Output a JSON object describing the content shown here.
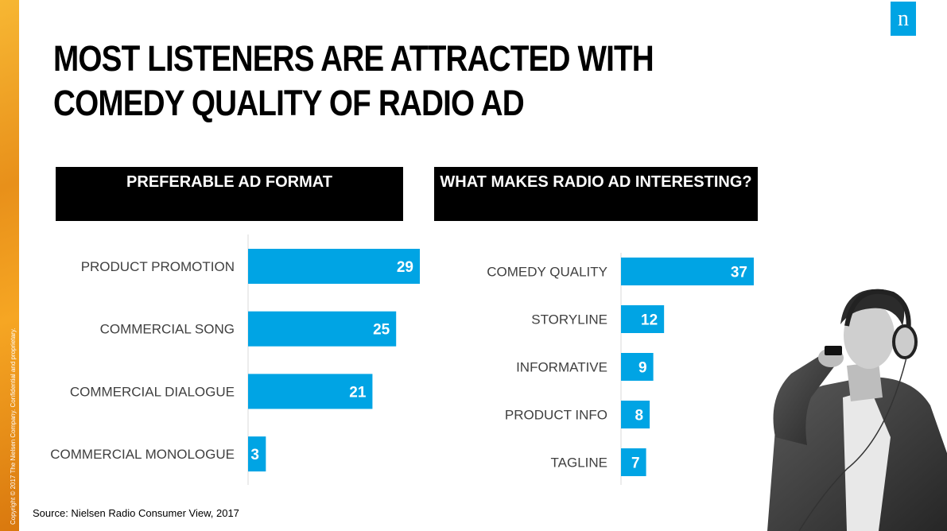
{
  "page": {
    "title": "MOST LISTENERS ARE ATTRACTED WITH COMEDY QUALITY OF RADIO AD",
    "copyright": "Copyright © 2017 The Nielsen Company. Confidential and proprietary.",
    "source": "Source: Nielsen Radio Consumer View, 2017",
    "logo_letter": "n"
  },
  "colors": {
    "bar": "#00a4e4",
    "header_bg": "#000000",
    "accent": "#f6a623"
  },
  "chart_data": [
    {
      "type": "bar",
      "orientation": "horizontal",
      "title": "PREFERABLE AD FORMAT",
      "categories": [
        "PRODUCT PROMOTION",
        "COMMERCIAL SONG",
        "COMMERCIAL DIALOGUE",
        "COMMERCIAL MONOLOGUE"
      ],
      "values": [
        29,
        25,
        21,
        3
      ],
      "xlim": [
        0,
        29
      ]
    },
    {
      "type": "bar",
      "orientation": "horizontal",
      "title": "WHAT MAKES RADIO AD INTERESTING?",
      "categories": [
        "COMEDY QUALITY",
        "STORYLINE",
        "INFORMATIVE",
        "PRODUCT INFO",
        "TAGLINE"
      ],
      "values": [
        37,
        12,
        9,
        8,
        7
      ],
      "xlim": [
        0,
        37
      ]
    }
  ]
}
